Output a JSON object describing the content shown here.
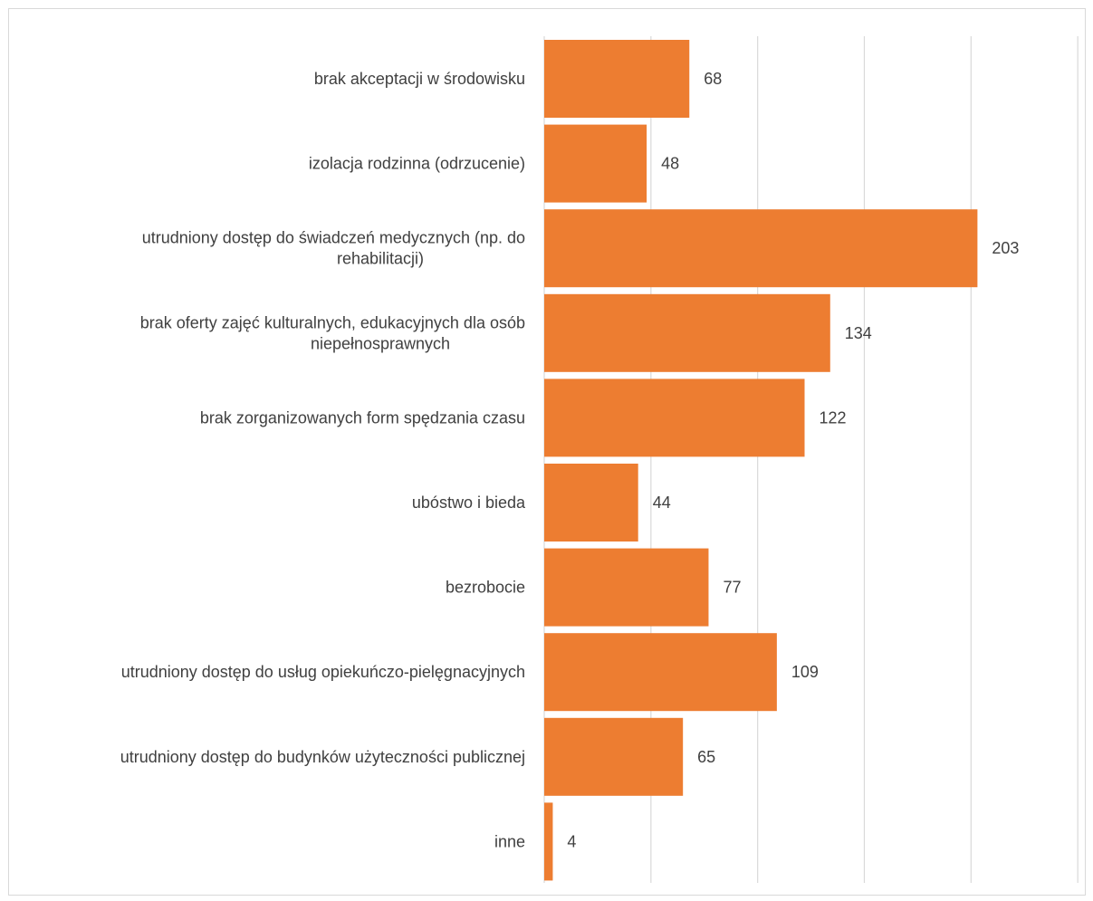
{
  "chart_data": {
    "type": "bar",
    "orientation": "horizontal",
    "categories": [
      [
        "brak akceptacji w środowisku"
      ],
      [
        "izolacja rodzinna (odrzucenie)"
      ],
      [
        "utrudniony dostęp do świadczeń medycznych (np. do",
        "rehabilitacji)"
      ],
      [
        "brak oferty zajęć kulturalnych, edukacyjnych dla osób",
        "niepełnosprawnych"
      ],
      [
        "brak zorganizowanych form spędzania czasu"
      ],
      [
        "ubóstwo i bieda"
      ],
      [
        "bezrobocie"
      ],
      [
        "utrudniony dostęp do usług opiekuńczo-pielęgnacyjnych"
      ],
      [
        "utrudniony dostęp do budynków użyteczności publicznej"
      ],
      [
        "inne"
      ]
    ],
    "values": [
      68,
      48,
      203,
      134,
      122,
      44,
      77,
      109,
      65,
      4
    ],
    "xlim": [
      0,
      250
    ],
    "grid": true,
    "bar_color": "#ed7d31",
    "grid_color": "#d9d9d9",
    "legend": "none"
  }
}
